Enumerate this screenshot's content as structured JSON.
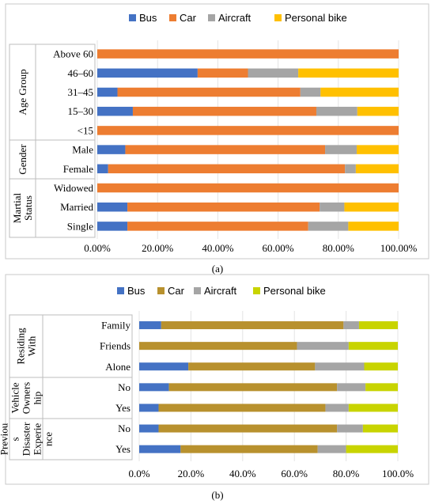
{
  "chart_data": [
    {
      "type": "bar",
      "stacked": true,
      "orientation": "horizontal",
      "legend_position": "top",
      "legend": [
        "Bus",
        "Car",
        "Aircraft",
        "Personal bike"
      ],
      "colors": [
        "#4472C4",
        "#ED7D31",
        "#A5A5A5",
        "#FFC000"
      ],
      "groups": [
        {
          "label": "Age Group",
          "rows": [
            "Above 60",
            "46–60",
            "31–45",
            "15–30",
            "<15"
          ]
        },
        {
          "label": "Gender",
          "rows": [
            "Male",
            "Female"
          ]
        },
        {
          "label": "Martial Status",
          "rows": [
            "Widowed",
            "Married",
            "Single"
          ]
        }
      ],
      "series": [
        {
          "name": "Bus",
          "values": [
            0,
            33.3,
            6.7,
            11.8,
            0,
            9.3,
            3.6,
            0,
            10.0,
            10.0
          ]
        },
        {
          "name": "Car",
          "values": [
            100,
            16.7,
            60.7,
            60.9,
            100,
            66.3,
            78.6,
            100,
            63.8,
            60.0
          ]
        },
        {
          "name": "Aircraft",
          "values": [
            0,
            16.7,
            6.7,
            13.6,
            0,
            10.5,
            3.6,
            0,
            8.2,
            13.3
          ]
        },
        {
          "name": "Personal bike",
          "values": [
            0,
            33.3,
            25.9,
            13.7,
            0,
            13.9,
            14.2,
            0,
            18.0,
            16.7
          ]
        }
      ],
      "x_ticks": [
        "0.00%",
        "20.00%",
        "40.00%",
        "60.00%",
        "80.00%",
        "100.00%"
      ],
      "xlim": [
        0,
        100
      ],
      "caption": "(a)"
    },
    {
      "type": "bar",
      "stacked": true,
      "orientation": "horizontal",
      "legend_position": "top",
      "legend": [
        "Bus",
        "Car",
        "Aircraft",
        "Personal bike"
      ],
      "colors": [
        "#4472C4",
        "#B8912E",
        "#A5A5A5",
        "#C8D400"
      ],
      "groups": [
        {
          "label": "Residing With",
          "rows": [
            "Family",
            "Friends",
            "Alone"
          ]
        },
        {
          "label": "Vehicle Ownership",
          "rows": [
            "No",
            "Yes"
          ]
        },
        {
          "label": "Previous Disaster Experience",
          "rows": [
            "No",
            "Yes"
          ]
        }
      ],
      "series": [
        {
          "name": "Bus",
          "values": [
            8.5,
            0,
            19.0,
            11.5,
            7.5,
            7.5,
            16.0
          ]
        },
        {
          "name": "Car",
          "values": [
            70.5,
            61.0,
            49.0,
            65.0,
            64.5,
            69.0,
            53.0
          ]
        },
        {
          "name": "Aircraft",
          "values": [
            6.0,
            20.0,
            19.0,
            11.0,
            9.0,
            10.0,
            11.0
          ]
        },
        {
          "name": "Personal bike",
          "values": [
            15.0,
            19.0,
            13.0,
            12.5,
            19.0,
            13.5,
            20.0
          ]
        }
      ],
      "x_ticks": [
        "0.0%",
        "20.0%",
        "40.0%",
        "60.0%",
        "80.0%",
        "100.0%"
      ],
      "xlim": [
        0,
        100
      ],
      "caption": "(b)"
    }
  ],
  "group_label_lines": {
    "a": [
      [
        "Age Group"
      ],
      [
        "Gender"
      ],
      [
        "Martial",
        "Status"
      ]
    ],
    "b": [
      [
        "Residing",
        "With"
      ],
      [
        "Vehicle",
        "Owners",
        "hip"
      ],
      [
        "Previou",
        "s",
        "Disaster",
        "Experie",
        "nce"
      ]
    ]
  }
}
